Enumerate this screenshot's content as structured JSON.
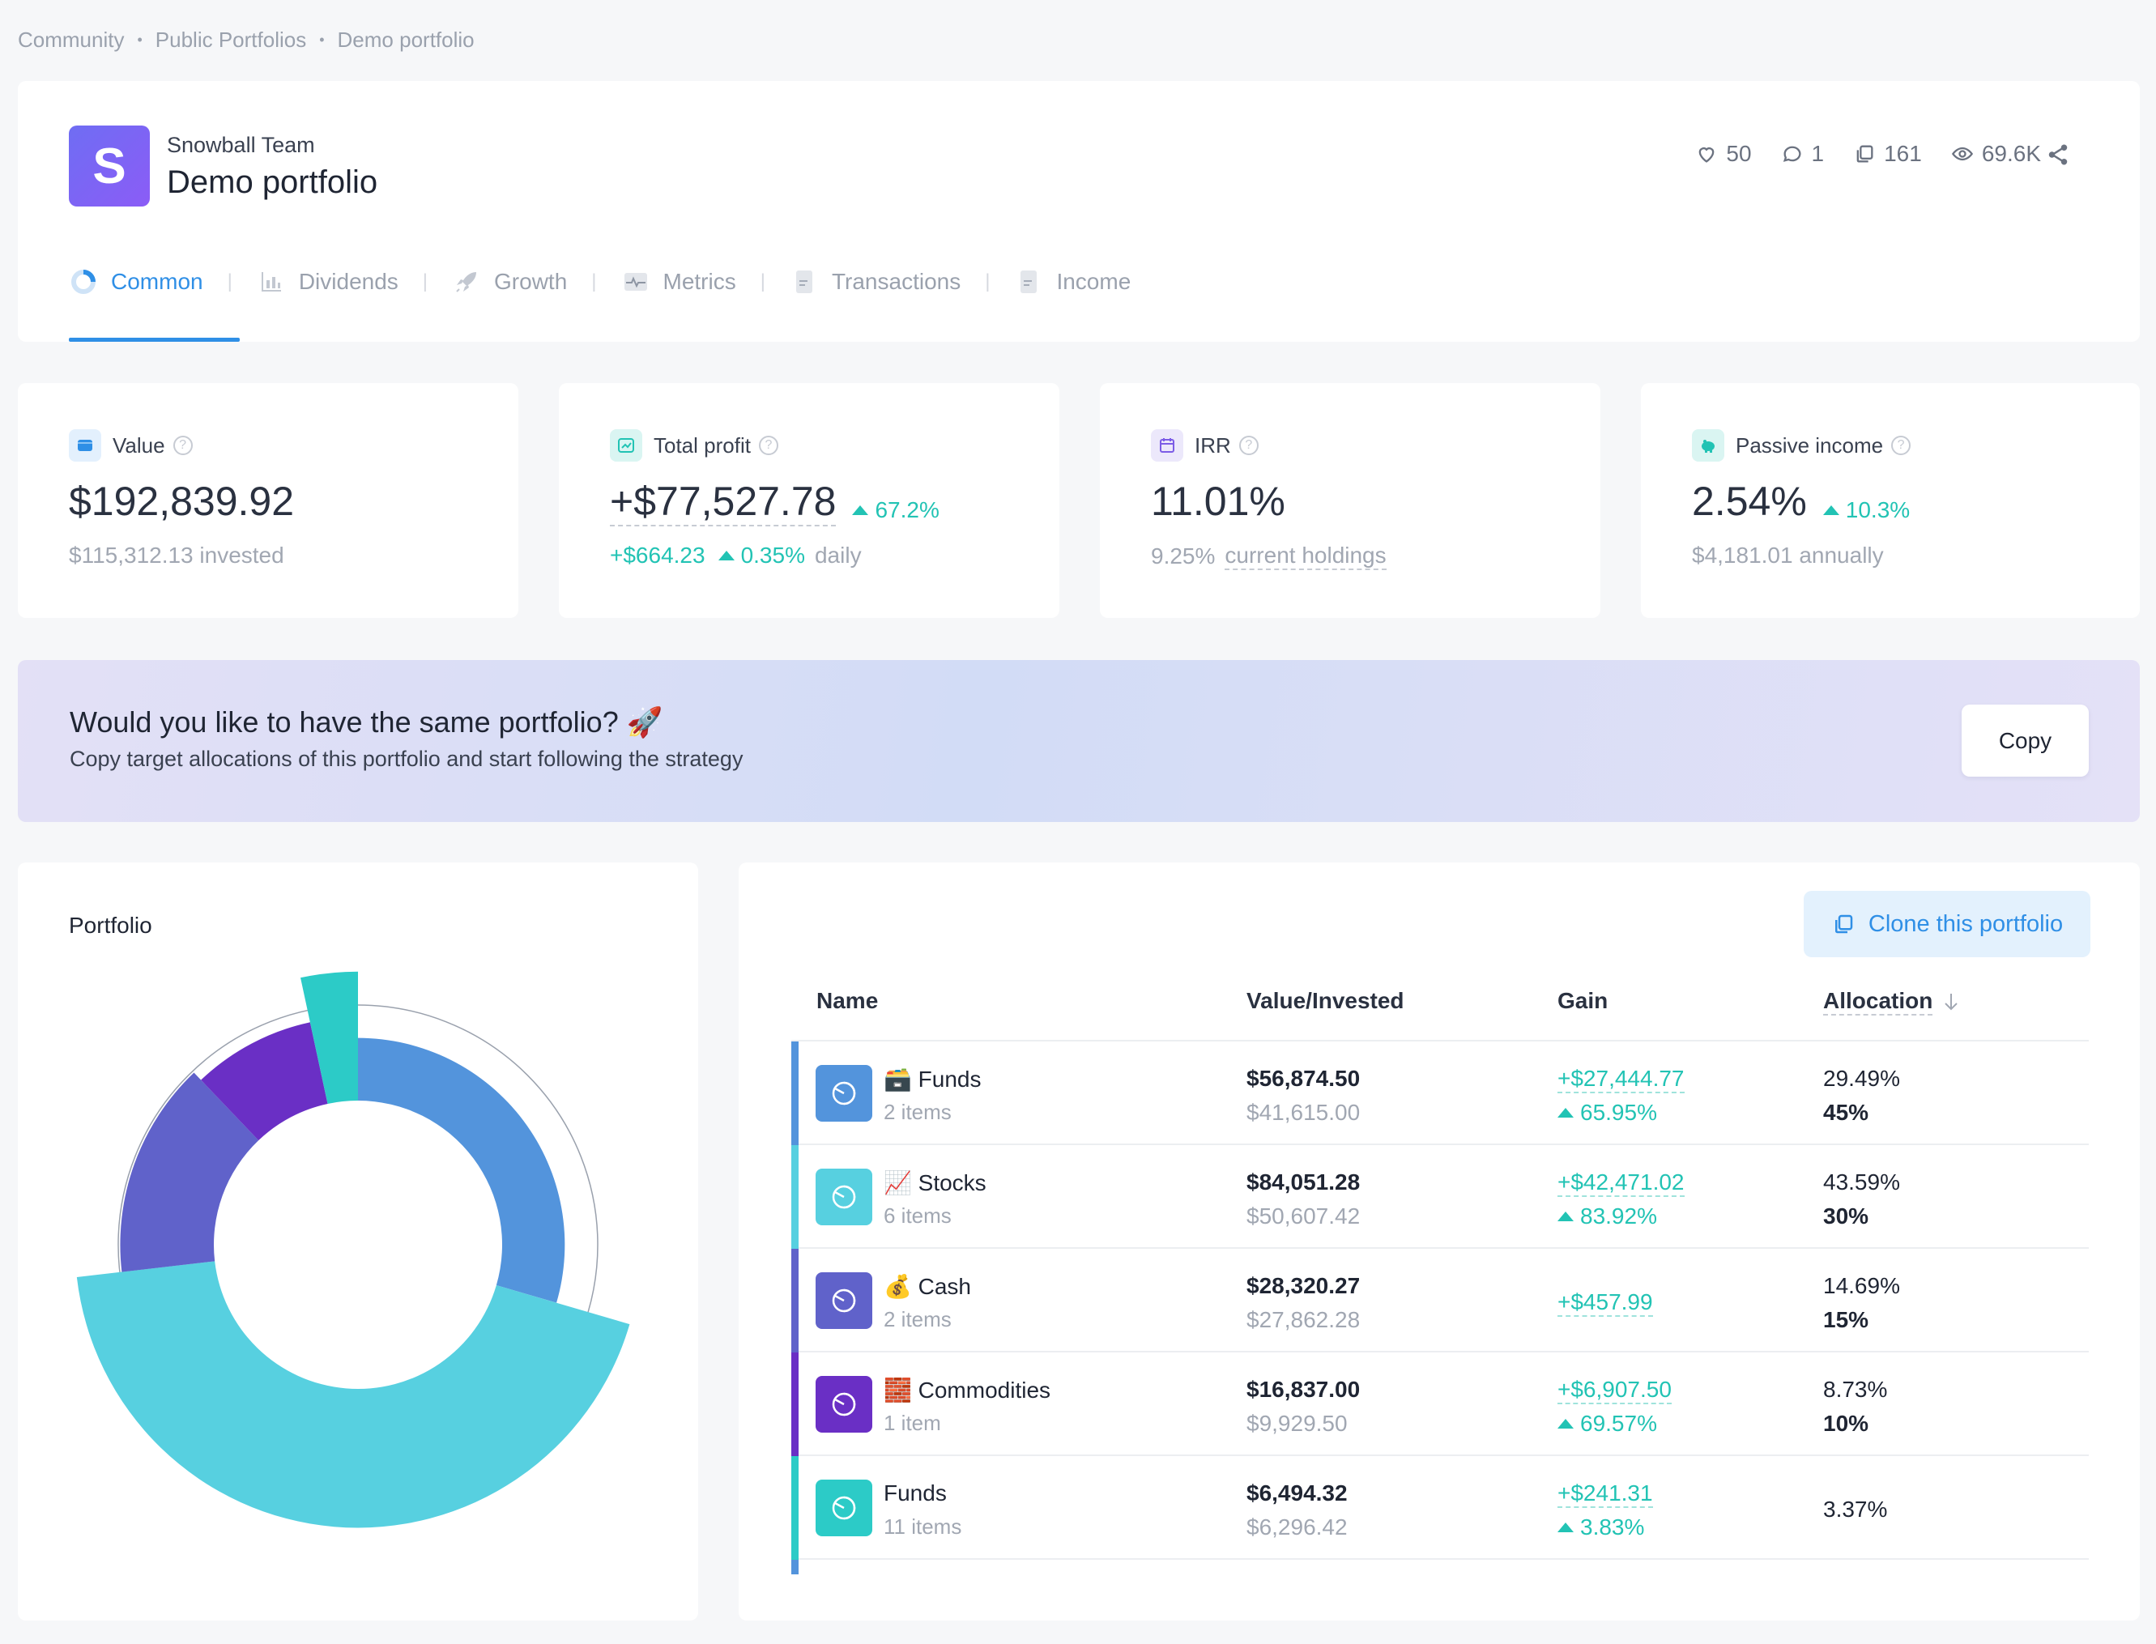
{
  "breadcrumb": [
    "Community",
    "Public Portfolios",
    "Demo portfolio"
  ],
  "header": {
    "logo_letter": "S",
    "team": "Snowball Team",
    "title": "Demo portfolio",
    "likes": "50",
    "comments": "1",
    "copies": "161",
    "views": "69.6K"
  },
  "tabs": [
    {
      "label": "Common",
      "icon": "donut-icon",
      "active": true
    },
    {
      "label": "Dividends",
      "icon": "bar-chart-icon"
    },
    {
      "label": "Growth",
      "icon": "rocket-icon"
    },
    {
      "label": "Metrics",
      "icon": "pulse-icon"
    },
    {
      "label": "Transactions",
      "icon": "document-icon"
    },
    {
      "label": "Income",
      "icon": "document-icon"
    }
  ],
  "metrics": {
    "value": {
      "label": "Value",
      "big": "$192,839.92",
      "sub": "$115,312.13 invested"
    },
    "profit": {
      "label": "Total profit",
      "big": "+$77,527.78",
      "big_pct": "67.2%",
      "daily": "+$664.23",
      "daily_pct": "0.35%",
      "daily_label": "daily"
    },
    "irr": {
      "label": "IRR",
      "big": "11.01%",
      "sub_value": "9.25%",
      "sub_link": "current holdings"
    },
    "passive": {
      "label": "Passive income",
      "big": "2.54%",
      "big_pct": "10.3%",
      "sub": "$4,181.01 annually"
    }
  },
  "banner": {
    "title": "Would you like to have the same portfolio? 🚀",
    "subtitle": "Copy target allocations of this portfolio and start following the strategy",
    "button": "Copy"
  },
  "chart_title": "Portfolio",
  "chart_data": {
    "type": "pie",
    "categories": [
      "Funds",
      "Stocks",
      "Cash",
      "Commodities",
      "Funds"
    ],
    "values": [
      29.49,
      43.59,
      14.69,
      8.73,
      3.37
    ],
    "targets": [
      45,
      30,
      15,
      10,
      null
    ],
    "colors": [
      "#5394dc",
      "#57d0e0",
      "#6062ca",
      "#6a2fc5",
      "#2ccbc7"
    ]
  },
  "table": {
    "clone_button": "Clone this portfolio",
    "headers": {
      "name": "Name",
      "value": "Value/Invested",
      "gain": "Gain",
      "alloc": "Allocation"
    },
    "rows": [
      {
        "name": "🗃️ Funds",
        "items": "2 items",
        "value": "$56,874.50",
        "invested": "$41,615.00",
        "gain": "+$27,444.77",
        "gain_pct": "65.95%",
        "alloc": "29.49%",
        "target": "45%",
        "color": "#5394dc"
      },
      {
        "name": "📈 Stocks",
        "items": "6 items",
        "value": "$84,051.28",
        "invested": "$50,607.42",
        "gain": "+$42,471.02",
        "gain_pct": "83.92%",
        "alloc": "43.59%",
        "target": "30%",
        "color": "#57d0e0"
      },
      {
        "name": "💰 Cash",
        "items": "2 items",
        "value": "$28,320.27",
        "invested": "$27,862.28",
        "gain": "+$457.99",
        "gain_pct": "",
        "alloc": "14.69%",
        "target": "15%",
        "color": "#6062ca"
      },
      {
        "name": "🧱 Commodities",
        "items": "1 item",
        "value": "$16,837.00",
        "invested": "$9,929.50",
        "gain": "+$6,907.50",
        "gain_pct": "69.57%",
        "alloc": "8.73%",
        "target": "10%",
        "color": "#6a2fc5"
      },
      {
        "name": "Funds",
        "items": "11 items",
        "value": "$6,494.32",
        "invested": "$6,296.42",
        "gain": "+$241.31",
        "gain_pct": "3.83%",
        "alloc": "3.37%",
        "target": "",
        "color": "#2ccbc7"
      }
    ]
  }
}
